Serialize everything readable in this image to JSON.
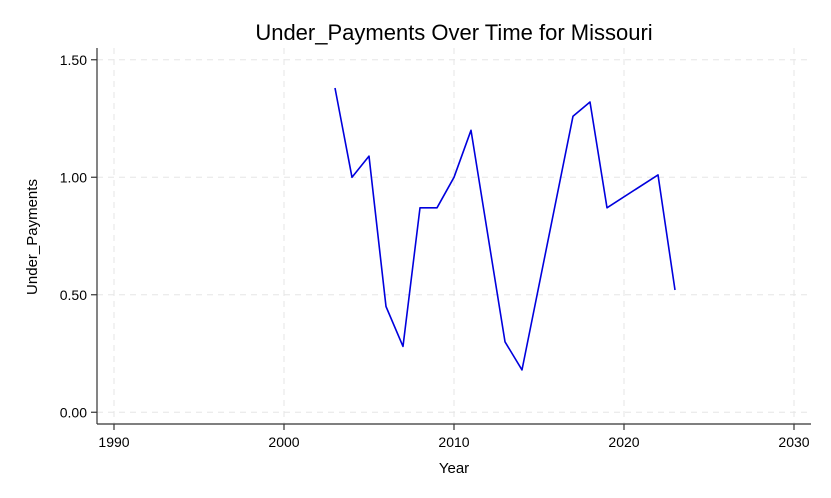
{
  "chart_data": {
    "type": "line",
    "title": "Under_Payments Over Time for Missouri",
    "xlabel": "Year",
    "ylabel": "Under_Payments",
    "xlim": [
      1989,
      2031
    ],
    "ylim": [
      -0.05,
      1.55
    ],
    "xticks": [
      1990,
      2000,
      2010,
      2020,
      2030
    ],
    "yticks": [
      0.0,
      0.5,
      1.0,
      1.5
    ],
    "ytick_labels": [
      "0.00",
      "0.50",
      "1.00",
      "1.50"
    ],
    "grid": true,
    "line_color": "#0000dd",
    "series": [
      {
        "x": [
          2003,
          2004,
          2005,
          2006,
          2007,
          2008,
          2009,
          2010,
          2011,
          2013,
          2014,
          2017,
          2018,
          2019,
          2022,
          2023
        ],
        "y": [
          1.38,
          1.0,
          1.09,
          0.45,
          0.28,
          0.87,
          0.87,
          1.0,
          1.2,
          0.3,
          0.18,
          1.26,
          1.32,
          0.87,
          1.01,
          0.52
        ]
      }
    ]
  }
}
